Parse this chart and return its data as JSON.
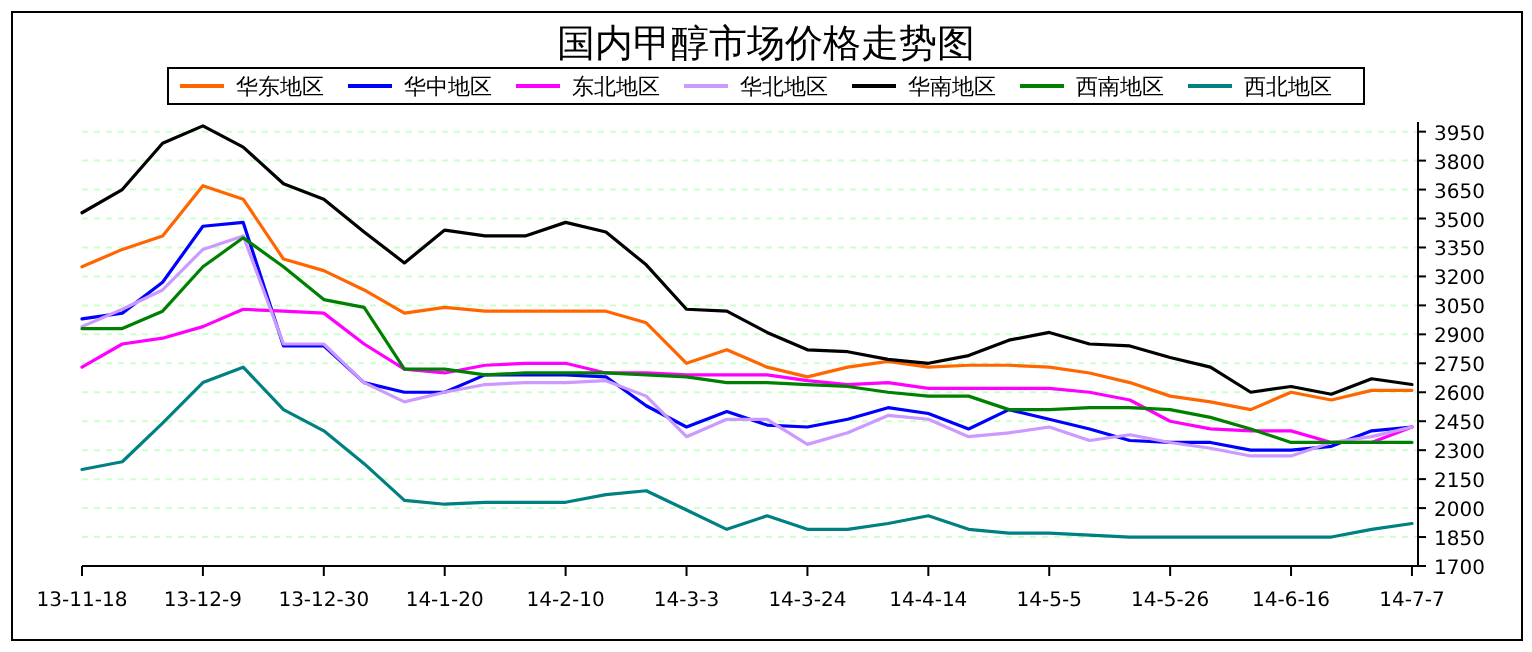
{
  "chart_data": {
    "type": "line",
    "title": "国内甲醇市场价格走势图",
    "legend": "top",
    "grid": "y",
    "categories": [
      "13-11-18",
      null,
      null,
      "13-12-9",
      null,
      null,
      "13-12-30",
      null,
      null,
      "14-1-20",
      null,
      null,
      "14-2-10",
      null,
      null,
      "14-3-3",
      null,
      null,
      "14-3-24",
      null,
      null,
      "14-4-14",
      null,
      null,
      "14-5-5",
      null,
      null,
      "14-5-26",
      null,
      null,
      "14-6-16",
      null,
      null,
      "14-7-7"
    ],
    "ylim": [
      1700,
      4000
    ],
    "yticks": [
      1700,
      1850,
      2000,
      2150,
      2300,
      2450,
      2600,
      2750,
      2900,
      3050,
      3200,
      3350,
      3500,
      3650,
      3800,
      3950
    ],
    "series": [
      {
        "name": "华东地区",
        "color": "#ff6600",
        "values": [
          3250,
          3340,
          3410,
          3670,
          3600,
          3290,
          3230,
          3130,
          3010,
          3040,
          3020,
          3020,
          3020,
          3020,
          2960,
          2750,
          2820,
          2730,
          2680,
          2730,
          2760,
          2730,
          2740,
          2740,
          2730,
          2700,
          2650,
          2580,
          2550,
          2510,
          2600,
          2560,
          2610,
          2610
        ]
      },
      {
        "name": "华中地区",
        "color": "#0000ff",
        "values": [
          2980,
          3010,
          3170,
          3460,
          3480,
          2840,
          2840,
          2650,
          2600,
          2600,
          2690,
          2690,
          2690,
          2680,
          2530,
          2420,
          2500,
          2430,
          2420,
          2460,
          2520,
          2490,
          2410,
          2510,
          2460,
          2410,
          2350,
          2340,
          2340,
          2300,
          2300,
          2320,
          2400,
          2420
        ]
      },
      {
        "name": "东北地区",
        "color": "#ff00ff",
        "values": [
          2730,
          2850,
          2880,
          2940,
          3030,
          3020,
          3010,
          2850,
          2720,
          2700,
          2740,
          2750,
          2750,
          2700,
          2700,
          2690,
          2690,
          2690,
          2660,
          2640,
          2650,
          2620,
          2620,
          2620,
          2620,
          2600,
          2560,
          2450,
          2410,
          2400,
          2400,
          2340,
          2340,
          2420
        ]
      },
      {
        "name": "华北地区",
        "color": "#cc99ff",
        "values": [
          2940,
          3030,
          3130,
          3340,
          3410,
          2850,
          2850,
          2650,
          2550,
          2600,
          2640,
          2650,
          2650,
          2660,
          2580,
          2370,
          2460,
          2460,
          2330,
          2390,
          2480,
          2460,
          2370,
          2390,
          2420,
          2350,
          2380,
          2340,
          2310,
          2270,
          2270,
          2340,
          2370,
          2420
        ]
      },
      {
        "name": "华南地区",
        "color": "#000000",
        "values": [
          3530,
          3650,
          3890,
          3980,
          3870,
          3680,
          3600,
          3430,
          3270,
          3440,
          3410,
          3410,
          3480,
          3430,
          3260,
          3030,
          3020,
          2910,
          2820,
          2810,
          2770,
          2750,
          2790,
          2870,
          2910,
          2850,
          2840,
          2780,
          2730,
          2600,
          2630,
          2590,
          2670,
          2640
        ]
      },
      {
        "name": "西南地区",
        "color": "#008000",
        "values": [
          2930,
          2930,
          3020,
          3250,
          3400,
          3250,
          3080,
          3040,
          2720,
          2720,
          2690,
          2700,
          2700,
          2700,
          2690,
          2680,
          2650,
          2650,
          2640,
          2630,
          2600,
          2580,
          2580,
          2510,
          2510,
          2520,
          2520,
          2510,
          2470,
          2410,
          2340,
          2340,
          2340,
          2340
        ]
      },
      {
        "name": "西北地区",
        "color": "#008080",
        "values": [
          2200,
          2240,
          2440,
          2650,
          2730,
          2510,
          2400,
          2230,
          2040,
          2020,
          2030,
          2030,
          2030,
          2070,
          2090,
          1990,
          1890,
          1960,
          1890,
          1890,
          1920,
          1960,
          1890,
          1870,
          1870,
          1860,
          1850,
          1850,
          1850,
          1850,
          1850,
          1850,
          1890,
          1920
        ]
      }
    ]
  }
}
